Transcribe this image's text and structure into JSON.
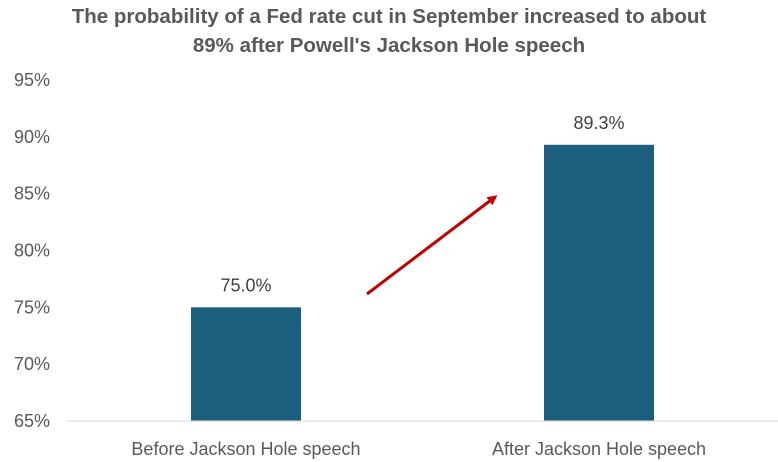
{
  "chart_data": {
    "type": "bar",
    "title_line1": "The probability of a Fed rate cut in September increased to about",
    "title_line2": "89% after Powell's Jackson Hole speech",
    "categories": [
      "Before Jackson Hole speech",
      "After Jackson Hole speech"
    ],
    "values": [
      75.0,
      89.3
    ],
    "data_labels": [
      "75.0%",
      "89.3%"
    ],
    "ylim": [
      65,
      95
    ],
    "yticks": [
      65,
      70,
      75,
      80,
      85,
      90,
      95
    ],
    "ytick_labels": [
      "65%",
      "70%",
      "75%",
      "80%",
      "85%",
      "90%",
      "95%"
    ],
    "grid": false,
    "bar_color": "#1b5e7e",
    "arrow_color": "#c00000",
    "annotation": "arrow pointing up from first bar toward second bar"
  }
}
